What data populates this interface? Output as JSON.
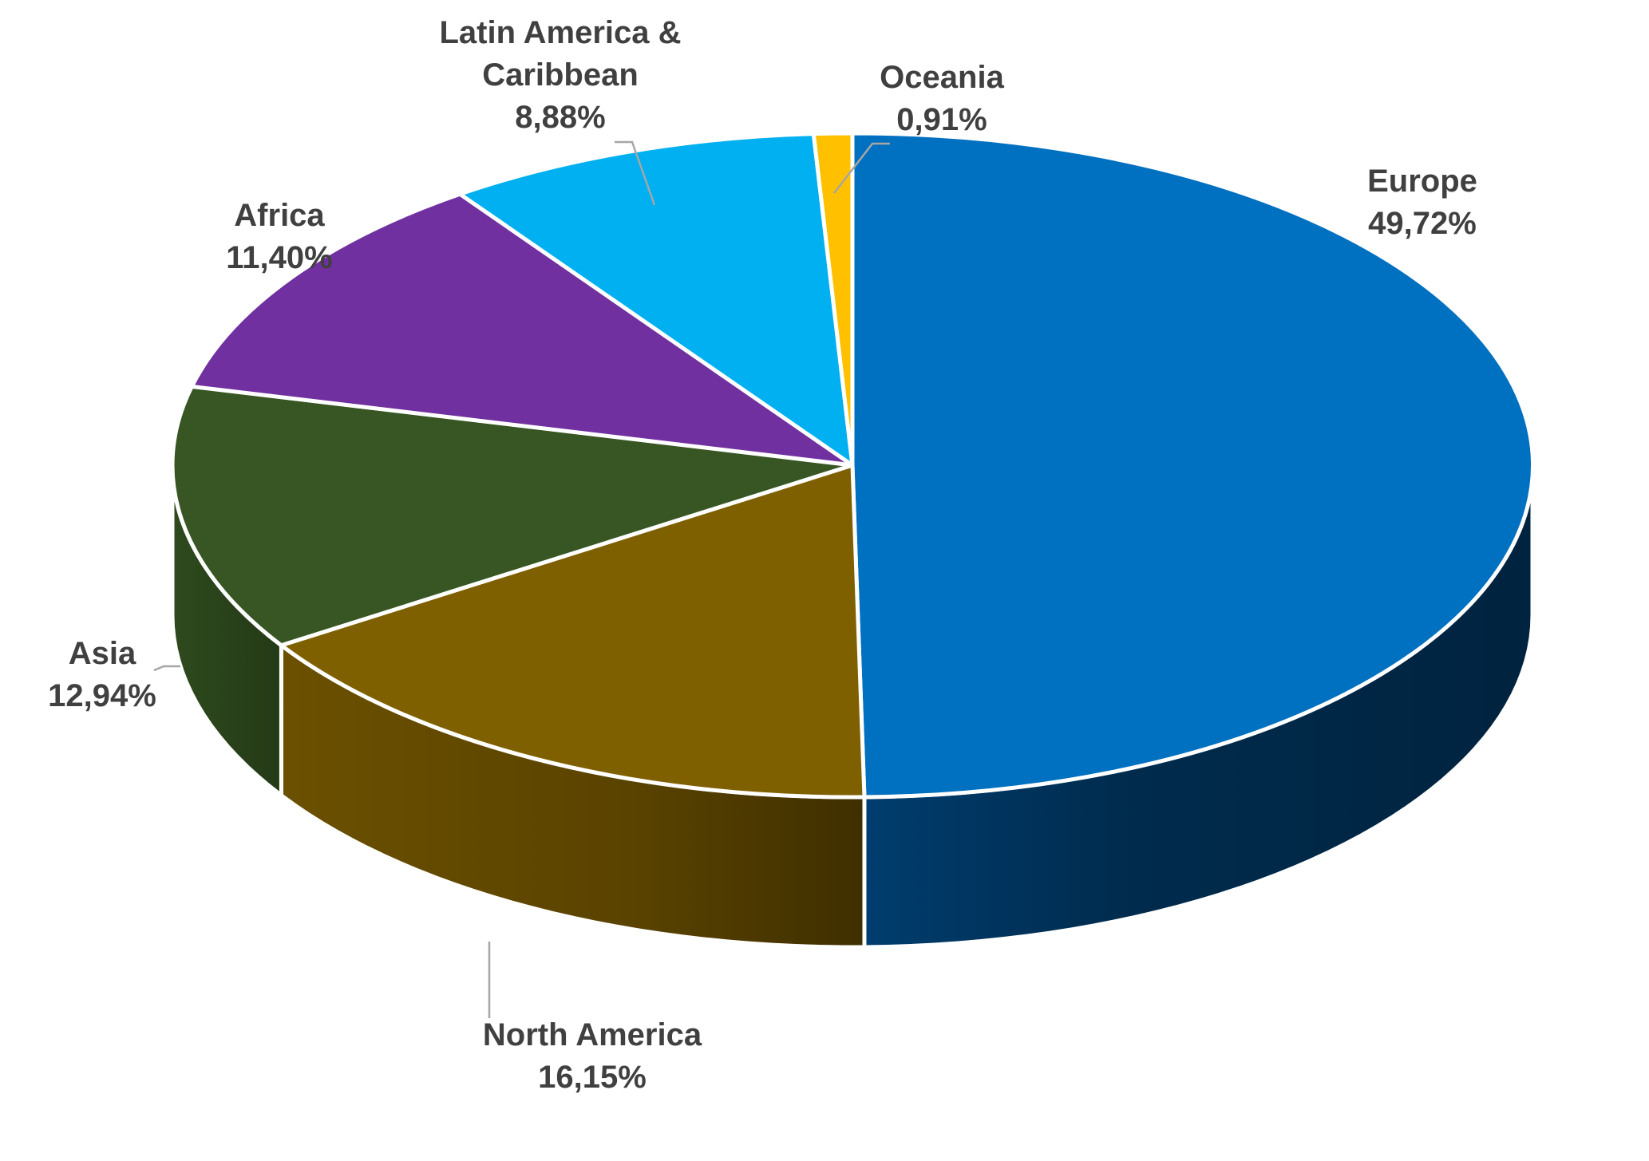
{
  "chart_data": {
    "type": "pie",
    "style": "3d",
    "title": "",
    "legend": "none",
    "slices": [
      {
        "label": "Europe",
        "value": 49.72,
        "value_label": "49,72%",
        "color": "#0070c0",
        "side_color": "#002f55"
      },
      {
        "label": "North America",
        "value": 16.15,
        "value_label": "16,15%",
        "color": "#7f6000",
        "side_color": "#4f3b00"
      },
      {
        "label": "Asia",
        "value": 12.94,
        "value_label": "12,94%",
        "color": "#375623",
        "side_color": "#233816"
      },
      {
        "label": "Africa",
        "value": 11.4,
        "value_label": "11,40%",
        "color": "#7030a0",
        "side_color": "#451d63"
      },
      {
        "label_lines": [
          "Latin America &",
          "Caribbean"
        ],
        "label": "Latin America & Caribbean",
        "value": 8.88,
        "value_label": "8,88%",
        "color": "#00b0f0",
        "side_color": "#006e96"
      },
      {
        "label": "Oceania",
        "value": 0.91,
        "value_label": "0,91%",
        "color": "#ffc000",
        "side_color": "#a67c00"
      }
    ]
  }
}
